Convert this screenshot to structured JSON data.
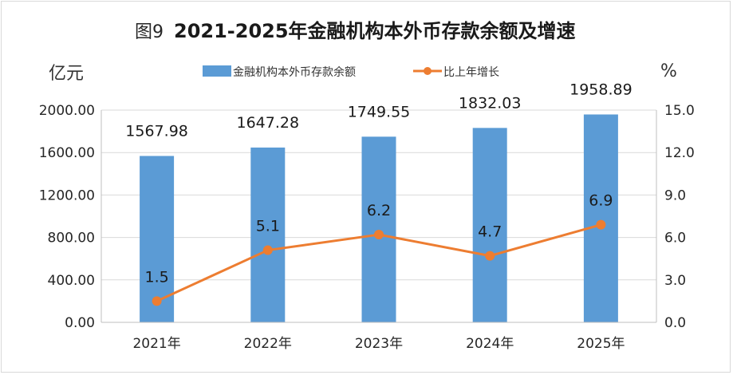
{
  "chart_data": {
    "type": "bar",
    "title_prefix": "图9",
    "title": "2021-2025年金融机构本外币存款余额及增速",
    "left_axis_unit": "亿元",
    "right_axis_unit": "%",
    "categories": [
      "2021年",
      "2022年",
      "2023年",
      "2024年",
      "2025年"
    ],
    "series": [
      {
        "name": "金融机构本外币存款余额",
        "type": "bar",
        "axis": "left",
        "color": "#5b9bd5",
        "values": [
          1567.98,
          1647.28,
          1749.55,
          1832.03,
          1958.89
        ],
        "value_labels": [
          "1567.98",
          "1647.28",
          "1749.55",
          "1832.03",
          "1958.89"
        ]
      },
      {
        "name": "比上年增长",
        "type": "line",
        "axis": "right",
        "color": "#ed7d31",
        "values": [
          1.5,
          5.1,
          6.2,
          4.7,
          6.9
        ],
        "value_labels": [
          "1.5",
          "5.1",
          "6.2",
          "4.7",
          "6.9"
        ]
      }
    ],
    "left_axis": {
      "min": 0,
      "max": 2000,
      "ticks": [
        0,
        400,
        800,
        1200,
        1600,
        2000
      ],
      "tick_labels": [
        "0.00",
        "400.00",
        "800.00",
        "1200.00",
        "1600.00",
        "2000.00"
      ]
    },
    "right_axis": {
      "min": 0,
      "max": 15,
      "ticks": [
        0,
        3,
        6,
        9,
        12,
        15
      ],
      "tick_labels": [
        "0.0",
        "3.0",
        "6.0",
        "9.0",
        "12.0",
        "15.0"
      ]
    },
    "legend_position": "top-center",
    "grid": true
  }
}
